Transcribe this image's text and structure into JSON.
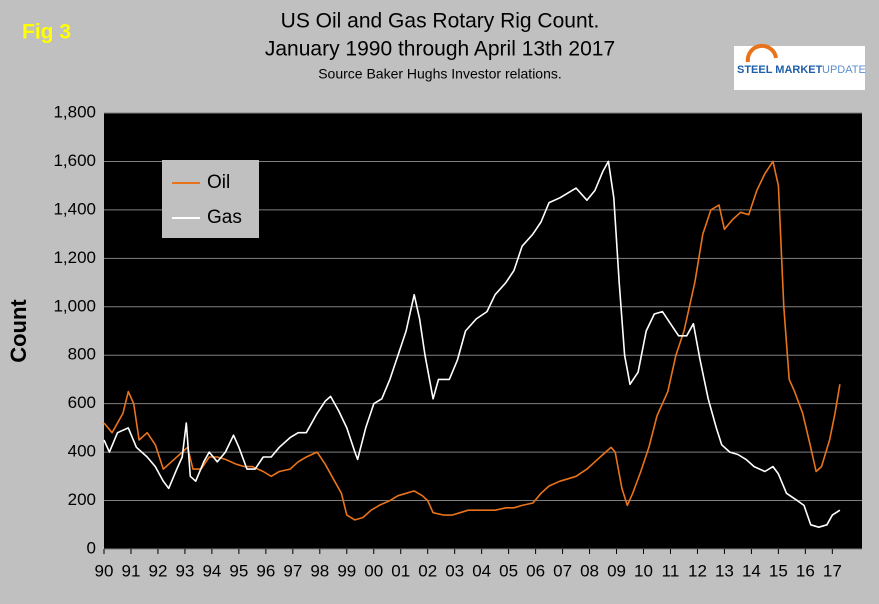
{
  "chart_data": {
    "type": "line",
    "fig_label": "Fig 3",
    "title": [
      "US Oil and Gas Rotary Rig Count.",
      "January 1990 through April 13th 2017"
    ],
    "subtitle": "Source Baker Hughs Investor relations.",
    "logo": {
      "bold": "STEEL MARKET",
      "light": "UPDATE"
    },
    "y_label": "Count",
    "xlim": [
      1990,
      2018.1
    ],
    "xticks": [
      {
        "value": 1990,
        "label": "90"
      },
      {
        "value": 1991,
        "label": "91"
      },
      {
        "value": 1992,
        "label": "92"
      },
      {
        "value": 1993,
        "label": "93"
      },
      {
        "value": 1994,
        "label": "94"
      },
      {
        "value": 1995,
        "label": "95"
      },
      {
        "value": 1996,
        "label": "96"
      },
      {
        "value": 1997,
        "label": "97"
      },
      {
        "value": 1998,
        "label": "98"
      },
      {
        "value": 1999,
        "label": "99"
      },
      {
        "value": 2000,
        "label": "00"
      },
      {
        "value": 2001,
        "label": "01"
      },
      {
        "value": 2002,
        "label": "02"
      },
      {
        "value": 2003,
        "label": "03"
      },
      {
        "value": 2004,
        "label": "04"
      },
      {
        "value": 2005,
        "label": "05"
      },
      {
        "value": 2006,
        "label": "06"
      },
      {
        "value": 2007,
        "label": "07"
      },
      {
        "value": 2008,
        "label": "08"
      },
      {
        "value": 2009,
        "label": "09"
      },
      {
        "value": 2010,
        "label": "10"
      },
      {
        "value": 2011,
        "label": "11"
      },
      {
        "value": 2012,
        "label": "12"
      },
      {
        "value": 2013,
        "label": "13"
      },
      {
        "value": 2014,
        "label": "14"
      },
      {
        "value": 2015,
        "label": "15"
      },
      {
        "value": 2016,
        "label": "16"
      },
      {
        "value": 2017,
        "label": "17"
      }
    ],
    "ylim": [
      0,
      1800
    ],
    "yticks": [
      0,
      200,
      400,
      600,
      800,
      {
        "value": 1000,
        "label": "1,000"
      },
      {
        "value": 1200,
        "label": "1,200"
      },
      {
        "value": 1400,
        "label": "1,400"
      },
      {
        "value": 1600,
        "label": "1,600"
      },
      {
        "value": 1800,
        "label": "1,800"
      }
    ],
    "grid": true,
    "legend": "upper left",
    "series": [
      {
        "name": "Oil",
        "color": "#e8731a",
        "x": [
          1990.0,
          1990.3,
          1990.7,
          1990.9,
          1991.1,
          1991.3,
          1991.6,
          1991.9,
          1992.2,
          1992.5,
          1992.9,
          1993.1,
          1993.3,
          1993.6,
          1993.9,
          1994.2,
          1994.5,
          1994.9,
          1995.2,
          1995.5,
          1995.9,
          1996.2,
          1996.5,
          1996.9,
          1997.2,
          1997.5,
          1997.9,
          1998.2,
          1998.5,
          1998.8,
          1999.0,
          1999.3,
          1999.6,
          1999.9,
          2000.2,
          2000.6,
          2000.9,
          2001.2,
          2001.5,
          2001.8,
          2002.0,
          2002.2,
          2002.6,
          2002.9,
          2003.2,
          2003.5,
          2003.9,
          2004.2,
          2004.5,
          2004.9,
          2005.2,
          2005.5,
          2005.9,
          2006.2,
          2006.5,
          2006.9,
          2007.2,
          2007.5,
          2007.9,
          2008.2,
          2008.5,
          2008.8,
          2008.95,
          2009.2,
          2009.4,
          2009.6,
          2009.9,
          2010.2,
          2010.5,
          2010.9,
          2011.2,
          2011.5,
          2011.9,
          2012.2,
          2012.5,
          2012.8,
          2013.0,
          2013.3,
          2013.6,
          2013.9,
          2014.2,
          2014.5,
          2014.8,
          2015.0,
          2015.2,
          2015.4,
          2015.6,
          2015.9,
          2016.2,
          2016.4,
          2016.6,
          2016.9,
          2017.1,
          2017.28
        ],
        "values": [
          520,
          480,
          560,
          650,
          600,
          450,
          480,
          430,
          330,
          360,
          400,
          420,
          330,
          330,
          380,
          380,
          370,
          350,
          340,
          340,
          320,
          300,
          320,
          330,
          360,
          380,
          400,
          350,
          290,
          230,
          140,
          120,
          130,
          160,
          180,
          200,
          220,
          230,
          240,
          220,
          200,
          150,
          140,
          140,
          150,
          160,
          160,
          160,
          160,
          170,
          170,
          180,
          190,
          230,
          260,
          280,
          290,
          300,
          330,
          360,
          390,
          420,
          400,
          250,
          180,
          230,
          320,
          420,
          550,
          650,
          800,
          900,
          1100,
          1300,
          1400,
          1420,
          1320,
          1360,
          1390,
          1380,
          1480,
          1550,
          1600,
          1500,
          1000,
          700,
          650,
          560,
          420,
          320,
          340,
          450,
          560,
          680
        ]
      },
      {
        "name": "Gas",
        "color": "#ffffff",
        "x": [
          1990.0,
          1990.2,
          1990.5,
          1990.9,
          1991.2,
          1991.6,
          1991.9,
          1992.2,
          1992.4,
          1992.7,
          1992.9,
          1993.05,
          1993.2,
          1993.4,
          1993.7,
          1993.9,
          1994.2,
          1994.5,
          1994.8,
          1995.0,
          1995.3,
          1995.6,
          1995.9,
          1996.2,
          1996.5,
          1996.9,
          1997.2,
          1997.5,
          1997.9,
          1998.2,
          1998.4,
          1998.7,
          1999.0,
          1999.3,
          1999.4,
          1999.7,
          2000.0,
          2000.3,
          2000.6,
          2000.9,
          2001.2,
          2001.5,
          2001.7,
          2001.9,
          2002.2,
          2002.4,
          2002.8,
          2003.1,
          2003.4,
          2003.8,
          2004.2,
          2004.5,
          2004.9,
          2005.2,
          2005.5,
          2005.9,
          2006.2,
          2006.5,
          2006.9,
          2007.2,
          2007.5,
          2007.9,
          2008.2,
          2008.5,
          2008.7,
          2008.9,
          2009.1,
          2009.3,
          2009.5,
          2009.8,
          2010.1,
          2010.4,
          2010.7,
          2011.0,
          2011.3,
          2011.6,
          2011.85,
          2012.1,
          2012.4,
          2012.7,
          2012.9,
          2013.2,
          2013.5,
          2013.8,
          2014.1,
          2014.5,
          2014.8,
          2015.0,
          2015.3,
          2015.7,
          2015.95,
          2016.2,
          2016.5,
          2016.8,
          2017.0,
          2017.28
        ],
        "values": [
          450,
          400,
          480,
          500,
          420,
          380,
          340,
          280,
          250,
          330,
          380,
          520,
          300,
          280,
          360,
          400,
          360,
          400,
          470,
          420,
          330,
          330,
          380,
          380,
          420,
          460,
          480,
          480,
          560,
          610,
          630,
          570,
          500,
          400,
          370,
          500,
          600,
          620,
          700,
          800,
          900,
          1050,
          950,
          800,
          620,
          700,
          700,
          780,
          900,
          950,
          980,
          1050,
          1100,
          1150,
          1250,
          1300,
          1350,
          1430,
          1450,
          1470,
          1490,
          1440,
          1480,
          1560,
          1600,
          1450,
          1100,
          800,
          680,
          730,
          900,
          970,
          980,
          930,
          880,
          880,
          930,
          780,
          620,
          500,
          430,
          400,
          390,
          370,
          340,
          320,
          340,
          310,
          230,
          200,
          180,
          100,
          90,
          100,
          140,
          160
        ]
      }
    ]
  }
}
